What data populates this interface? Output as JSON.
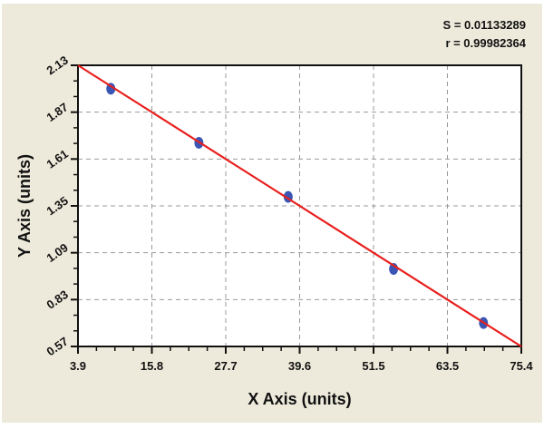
{
  "chart_data": {
    "type": "scatter",
    "xlabel": "X Axis (units)",
    "ylabel": "Y Axis (units)",
    "xlim": [
      3.9,
      75.4
    ],
    "ylim": [
      0.57,
      2.13
    ],
    "xticks": [
      "3.9",
      "15.8",
      "27.7",
      "39.6",
      "51.5",
      "63.5",
      "75.4"
    ],
    "yticks": [
      "0.57",
      "0.83",
      "1.09",
      "1.35",
      "1.61",
      "1.87",
      "2.13"
    ],
    "grid": true,
    "points": [
      {
        "x": 9.2,
        "y": 2.0
      },
      {
        "x": 23.4,
        "y": 1.7
      },
      {
        "x": 37.8,
        "y": 1.4
      },
      {
        "x": 54.8,
        "y": 1.0
      },
      {
        "x": 69.3,
        "y": 0.7
      }
    ],
    "fit_line": {
      "x": [
        3.9,
        75.4
      ],
      "y": [
        2.13,
        0.57
      ]
    },
    "annotations": {
      "s": "S = 0.01133289",
      "r": "r = 0.99982364"
    },
    "colors": {
      "points": "#3a55b4",
      "line": "#e8201e",
      "background": "#eeeadb"
    }
  }
}
